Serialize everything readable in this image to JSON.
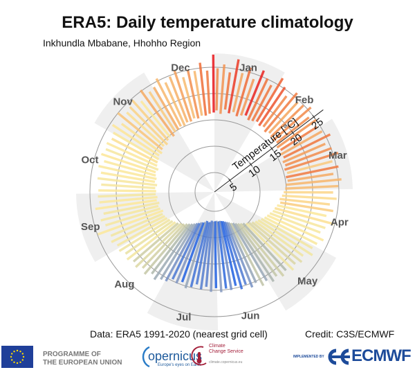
{
  "chart_data": {
    "type": "polar-bar",
    "title": "ERA5: Daily temperature climatology",
    "subtitle": "Inkhundla Mbabane, Hhohho Region",
    "axis_label": "Temperature [°C]",
    "r_ticks": [
      5,
      10,
      15,
      20,
      25
    ],
    "r_tick_labels": [
      "5",
      "10",
      "15",
      "20",
      "25"
    ],
    "months": [
      "Jan",
      "Feb",
      "Mar",
      "Apr",
      "May",
      "Jun",
      "Jul",
      "Aug",
      "Sep",
      "Oct",
      "Nov",
      "Dec"
    ],
    "shaded_months": [
      "Jan",
      "Mar",
      "May",
      "Jul",
      "Sep",
      "Nov"
    ],
    "day_step": 3,
    "tmax": [
      24.8,
      25.6,
      24.2,
      26.9,
      24.5,
      25.9,
      24.0,
      26.2,
      25.1,
      24.3,
      26.5,
      25.3,
      24.1,
      25.8,
      24.6,
      24.9,
      25.7,
      24.2,
      25.0,
      24.4,
      24.8,
      25.9,
      24.3,
      25.1,
      26.0,
      24.5,
      25.4,
      24.2,
      25.6,
      24.9,
      23.9,
      24.6,
      23.4,
      24.2,
      23.1,
      24.8,
      23.5,
      22.9,
      24.0,
      23.2,
      22.8,
      23.5,
      22.1,
      22.6,
      21.9,
      22.4,
      21.5,
      22.0,
      21.2,
      21.7,
      20.9,
      21.4,
      20.3,
      20.8,
      19.9,
      20.5,
      19.6,
      20.2,
      19.8,
      20.4,
      19.6,
      20.3,
      19.4,
      20.0,
      19.2,
      19.9,
      20.4,
      19.5,
      20.1,
      19.7,
      20.6,
      20.8,
      21.5,
      20.9,
      21.8,
      21.2,
      22.0,
      21.6,
      22.3,
      21.9,
      22.6,
      22.4,
      23.1,
      22.7,
      24.9,
      23.0,
      23.6,
      22.8,
      24.2,
      23.3,
      23.5,
      23.4,
      22.9,
      23.7,
      23.2,
      23.9,
      23.1,
      24.0,
      23.5,
      23.8,
      23.3,
      23.6,
      24.5,
      23.2,
      25.0,
      23.8,
      24.1,
      24.7,
      23.5,
      25.2,
      24.0,
      24.3,
      25.5,
      24.1,
      24.8,
      25.7,
      23.9,
      25.1,
      24.6,
      26.0,
      24.4,
      27.4
    ],
    "tmin": [
      16.8,
      16.2,
      17.1,
      16.5,
      16.9,
      16.3,
      16.7,
      17.0,
      16.4,
      16.6,
      16.9,
      16.5,
      16.8,
      16.2,
      16.6,
      16.3,
      16.1,
      16.4,
      15.9,
      16.2,
      15.8,
      16.0,
      15.5,
      15.7,
      15.3,
      15.6,
      15.2,
      15.4,
      15.0,
      14.8,
      14.5,
      14.2,
      13.8,
      14.0,
      13.5,
      13.2,
      13.0,
      12.6,
      12.3,
      12.0,
      11.6,
      11.2,
      10.9,
      10.5,
      10.1,
      9.8,
      9.4,
      9.1,
      8.8,
      8.5,
      8.2,
      8.0,
      7.7,
      7.5,
      7.3,
      7.1,
      7.0,
      6.9,
      7.0,
      6.8,
      6.9,
      7.0,
      6.8,
      7.1,
      7.2,
      7.0,
      7.3,
      7.5,
      7.6,
      7.9,
      8.1,
      8.4,
      8.7,
      9.0,
      9.3,
      9.7,
      10.0,
      10.4,
      10.7,
      11.0,
      11.3,
      11.6,
      11.8,
      12.0,
      11.7,
      12.1,
      12.3,
      12.0,
      12.4,
      12.2,
      12.5,
      12.4,
      12.6,
      12.3,
      12.8,
      12.6,
      12.9,
      13.1,
      12.8,
      13.3,
      13.5,
      13.6,
      13.9,
      13.7,
      14.1,
      14.3,
      14.0,
      14.5,
      14.7,
      14.4,
      14.9,
      15.0,
      15.3,
      15.1,
      15.5,
      15.4,
      15.8,
      15.6,
      16.0,
      15.9,
      16.2,
      16.4
    ],
    "colors": {
      "cold": "#1f5fe0",
      "cool": "#7f95c0",
      "neutral": "#efe4a0",
      "warm": "#f39a55",
      "hot": "#e8151a",
      "shade": "#efefef",
      "ring": "#999999"
    }
  },
  "footer": {
    "data_source": "Data: ERA5 1991-2020 (nearest grid cell)",
    "credit": "Credit: C3S/ECMWF"
  },
  "logos": {
    "eu_line1": "PROGRAMME OF",
    "eu_line2": "THE EUROPEAN UNION",
    "copernicus": "opernicus",
    "copernicus_tagline": "Europe's eyes on Earth",
    "c3s_line1": "Climate",
    "c3s_line2": "Change Service",
    "c3s_url": "climate.copernicus.eu",
    "implemented_by": "IMPLEMENTED BY",
    "ecmwf": "ECMWF"
  }
}
